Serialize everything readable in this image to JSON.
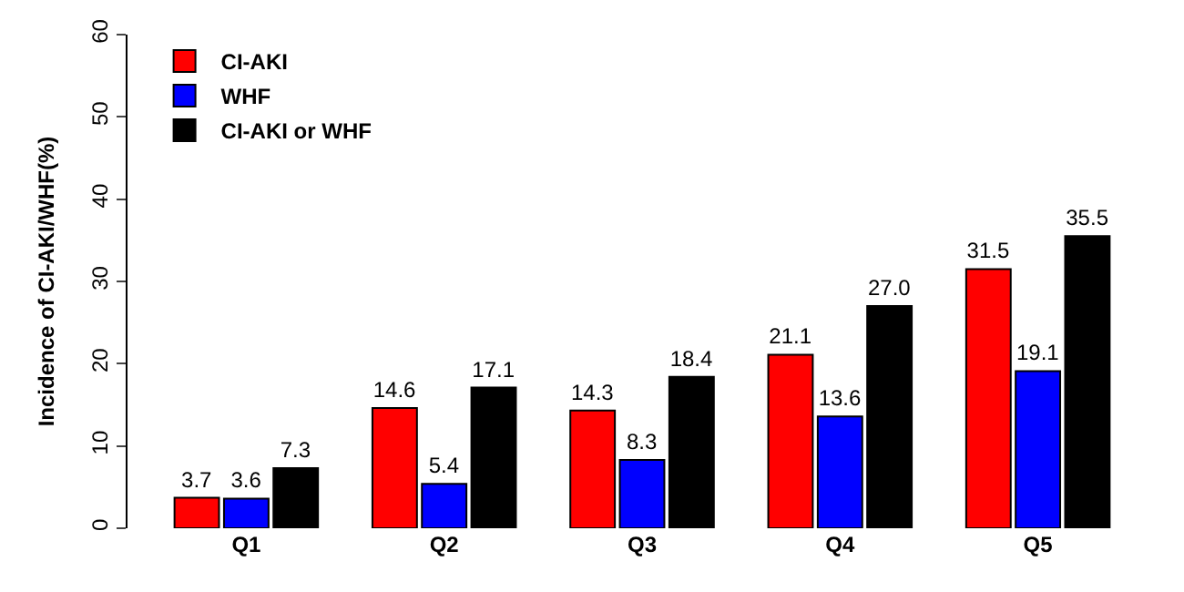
{
  "chart_data": {
    "type": "bar",
    "ylabel": "Incidence of CI-AKI/WHF(%)",
    "categories": [
      "Q1",
      "Q2",
      "Q3",
      "Q4",
      "Q5"
    ],
    "series": [
      {
        "name": "CI-AKI",
        "color": "#ff0000",
        "values": [
          3.7,
          14.6,
          14.3,
          21.1,
          31.5
        ]
      },
      {
        "name": "WHF",
        "color": "#0000ff",
        "values": [
          3.6,
          5.4,
          8.3,
          13.6,
          19.1
        ]
      },
      {
        "name": "CI-AKI or WHF",
        "color": "#000000",
        "values": [
          7.3,
          17.1,
          18.4,
          27.0,
          35.5
        ]
      }
    ],
    "value_labels": [
      [
        "3.7",
        "14.6",
        "14.3",
        "21.1",
        "31.5"
      ],
      [
        "3.6",
        "5.4",
        "8.3",
        "13.6",
        "19.1"
      ],
      [
        "7.3",
        "17.1",
        "18.4",
        "27.0",
        "35.5"
      ]
    ],
    "ylim": [
      0,
      60
    ],
    "yticks": [
      0,
      10,
      20,
      30,
      40,
      50,
      60
    ],
    "legend": "top left"
  }
}
